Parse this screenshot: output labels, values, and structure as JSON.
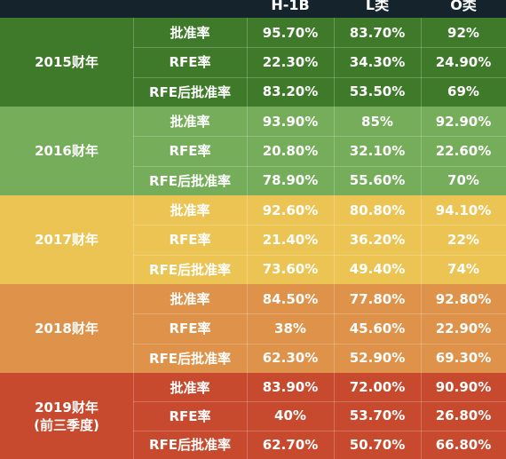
{
  "header": {
    "columns": [
      "H-1B",
      "L类",
      "O类"
    ]
  },
  "groups": [
    {
      "year": "2015财年",
      "color": "#3f7a2a",
      "rows": [
        {
          "metric": "批准率",
          "h1b": "95.70%",
          "l": "83.70%",
          "o": "92%"
        },
        {
          "metric": "RFE率",
          "h1b": "22.30%",
          "l": "34.30%",
          "o": "24.90%"
        },
        {
          "metric": "RFE后批准率",
          "h1b": "83.20%",
          "l": "53.50%",
          "o": "69%"
        }
      ]
    },
    {
      "year": "2016财年",
      "color": "#75ad5a",
      "rows": [
        {
          "metric": "批准率",
          "h1b": "93.90%",
          "l": "85%",
          "o": "92.90%"
        },
        {
          "metric": "RFE率",
          "h1b": "20.80%",
          "l": "32.10%",
          "o": "22.60%"
        },
        {
          "metric": "RFE后批准率",
          "h1b": "78.90%",
          "l": "55.60%",
          "o": "70%"
        }
      ]
    },
    {
      "year": "2017财年",
      "color": "#ecc453",
      "rows": [
        {
          "metric": "批准率",
          "h1b": "92.60%",
          "l": "80.80%",
          "o": "94.10%"
        },
        {
          "metric": "RFE率",
          "h1b": "21.40%",
          "l": "36.20%",
          "o": "22%"
        },
        {
          "metric": "RFE后批准率",
          "h1b": "73.60%",
          "l": "49.40%",
          "o": "74%"
        }
      ]
    },
    {
      "year": "2018财年",
      "color": "#de924a",
      "rows": [
        {
          "metric": "批准率",
          "h1b": "84.50%",
          "l": "77.80%",
          "o": "92.80%"
        },
        {
          "metric": "RFE率",
          "h1b": "38%",
          "l": "45.60%",
          "o": "22.90%"
        },
        {
          "metric": "RFE后批准率",
          "h1b": "62.30%",
          "l": "52.90%",
          "o": "69.30%"
        }
      ]
    },
    {
      "year": "2019财年\n(前三季度)",
      "color": "#c84a2e",
      "rows": [
        {
          "metric": "批准率",
          "h1b": "83.90%",
          "l": "72.00%",
          "o": "90.90%"
        },
        {
          "metric": "RFE率",
          "h1b": "40%",
          "l": "53.70%",
          "o": "26.80%"
        },
        {
          "metric": "RFE后批准率",
          "h1b": "62.70%",
          "l": "50.70%",
          "o": "66.80%"
        }
      ]
    }
  ]
}
